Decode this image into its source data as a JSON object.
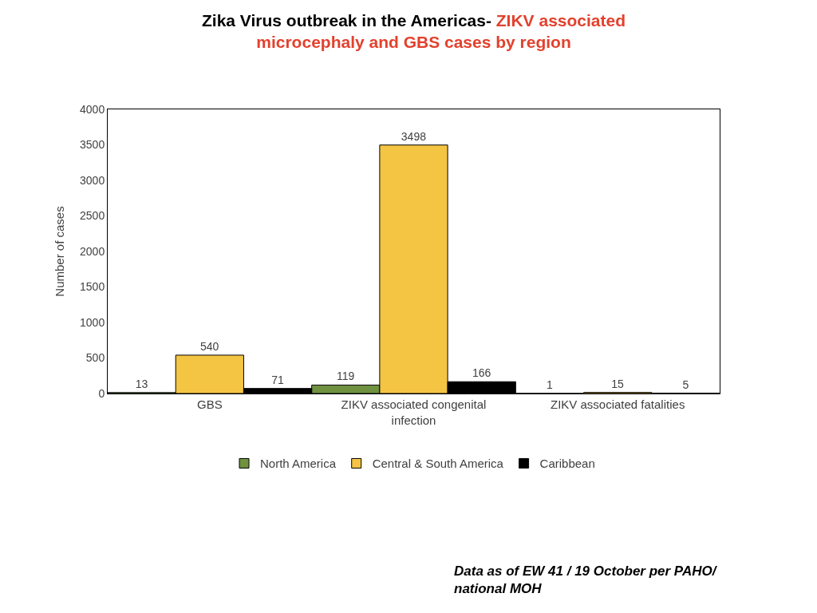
{
  "chart_data": {
    "type": "bar",
    "title": "Zika Virus outbreak in the Americas-",
    "subtitle": "ZIKV associated microcephaly and GBS cases by region",
    "ylabel": "Number of cases",
    "categories": [
      "GBS",
      "ZIKV associated congenital infection",
      "ZIKV associated fatalities"
    ],
    "series": [
      {
        "name": "North America",
        "color": "#6f9140",
        "values": [
          13,
          119,
          1
        ]
      },
      {
        "name": "Central & South America",
        "color": "#f4c443",
        "values": [
          540,
          3498,
          15
        ]
      },
      {
        "name": "Caribbean",
        "color": "#000000",
        "values": [
          71,
          166,
          5
        ]
      }
    ],
    "ylim": [
      0,
      4000
    ],
    "yticks": [
      0,
      500,
      1000,
      1500,
      2000,
      2500,
      3000,
      3500,
      4000
    ],
    "data_labels": true,
    "legend": "bottom",
    "annotations": [
      "Data as of EW 41 / 19 October per PAHO/ national MOH"
    ]
  }
}
